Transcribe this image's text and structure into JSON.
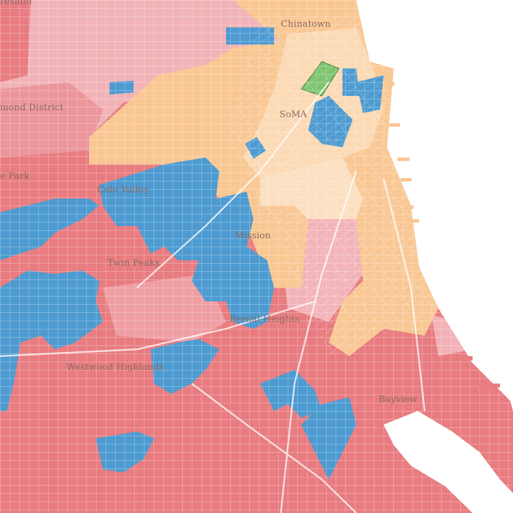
{
  "map": {
    "colors": {
      "red": "#e87c80",
      "pink": "#f2b3b8",
      "orange": "#f9c793",
      "peach": "#fbd9b3",
      "blue": "#4d9bd1",
      "green": "#7fc46f",
      "water": "#ffffff",
      "street": "#ffffff"
    },
    "labels": [
      {
        "id": "presidio",
        "text": "residio"
      },
      {
        "id": "chinatown",
        "text": "Chinatown"
      },
      {
        "id": "richmond",
        "text": "mond District"
      },
      {
        "id": "soma",
        "text": "SoMA"
      },
      {
        "id": "golden-gate-park",
        "text": "e Park"
      },
      {
        "id": "cole-valley",
        "text": "Cole Valley"
      },
      {
        "id": "mission",
        "text": "Mission"
      },
      {
        "id": "twin-peaks",
        "text": "Twin Peaks"
      },
      {
        "id": "bernal-heights",
        "text": "Bernal Heights"
      },
      {
        "id": "westwood-highlands",
        "text": "Westwood Highlands"
      },
      {
        "id": "bayview",
        "text": "Bayview"
      }
    ]
  }
}
